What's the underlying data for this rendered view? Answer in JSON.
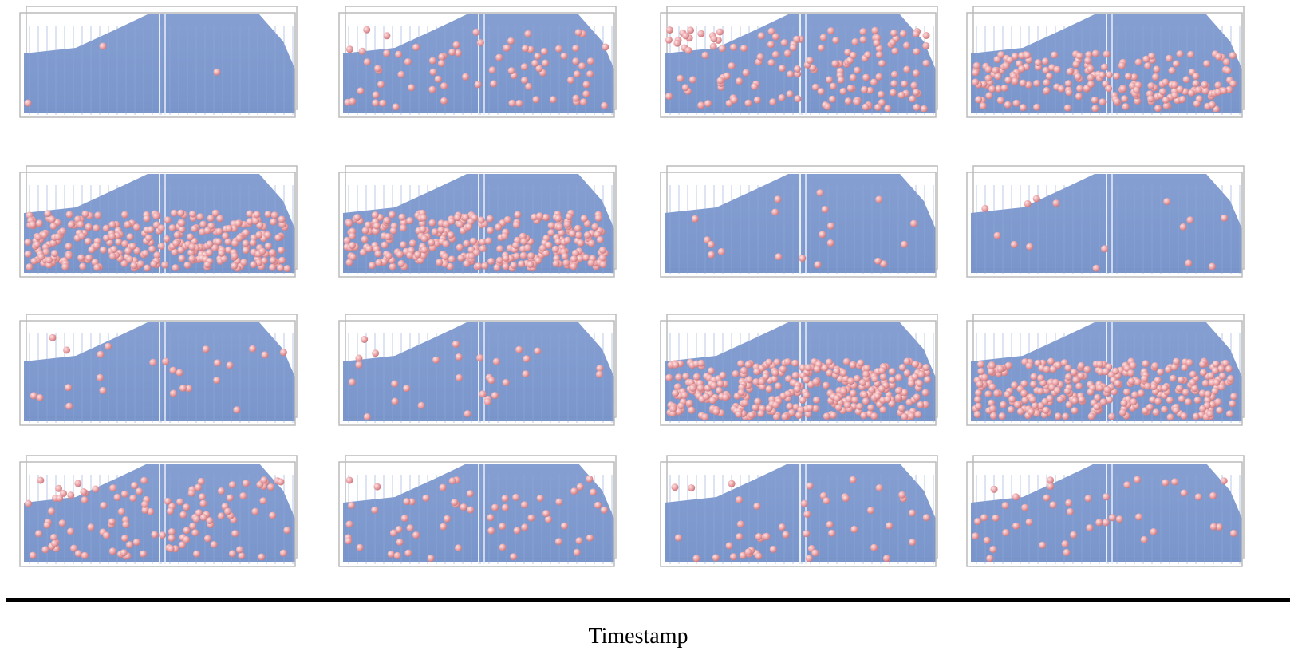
{
  "axis_label": "Timestamp"
}
